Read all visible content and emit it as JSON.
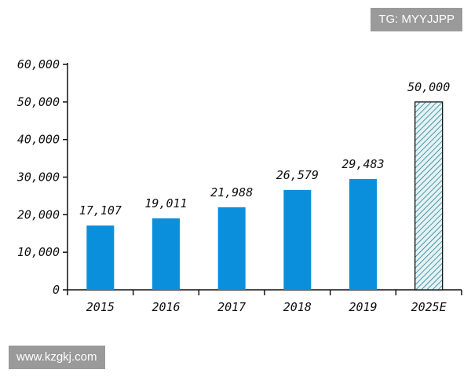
{
  "watermark": {
    "tg": "TG: MYYJJPP",
    "url": "www.kzgkj.com"
  },
  "chart_data": {
    "type": "bar",
    "title": "",
    "xlabel": "",
    "ylabel": "",
    "categories": [
      "2015",
      "2016",
      "2017",
      "2018",
      "2019",
      "2025E"
    ],
    "values": [
      17107,
      19011,
      21988,
      26579,
      29483,
      50000
    ],
    "value_labels": [
      "17,107",
      "19,011",
      "21,988",
      "26,579",
      "29,483",
      "50,000"
    ],
    "projected": [
      false,
      false,
      false,
      false,
      false,
      true
    ],
    "ylim": [
      0,
      60000
    ],
    "yticks": [
      0,
      10000,
      20000,
      30000,
      40000,
      50000,
      60000
    ],
    "ytick_labels": [
      "0",
      "10,000",
      "20,000",
      "30,000",
      "40,000",
      "50,000",
      "60,000"
    ],
    "grid": false,
    "colors": {
      "bar": "#0a8fdc",
      "projected_fill": "#e4f2f4",
      "projected_hatch": "#0a6f86",
      "axis": "#111111"
    }
  }
}
